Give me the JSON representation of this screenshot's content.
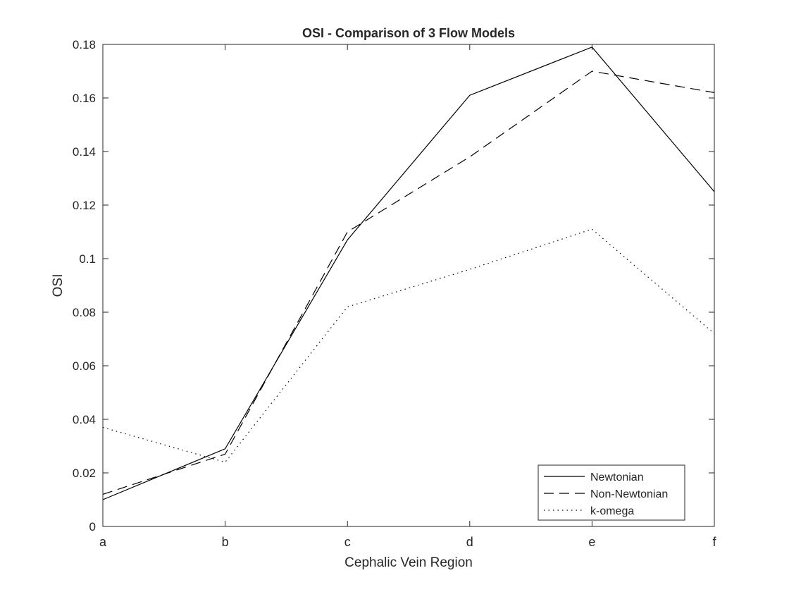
{
  "chart_data": {
    "type": "line",
    "title": "OSI - Comparison of 3 Flow Models",
    "xlabel": "Cephalic Vein Region",
    "ylabel": "OSI",
    "categories": [
      "a",
      "b",
      "c",
      "d",
      "e",
      "f"
    ],
    "ylim": [
      0,
      0.18
    ],
    "yticks": [
      "0",
      "0.02",
      "0.04",
      "0.06",
      "0.08",
      "0.1",
      "0.12",
      "0.14",
      "0.16",
      "0.18"
    ],
    "ytick_values": [
      0,
      0.02,
      0.04,
      0.06,
      0.08,
      0.1,
      0.12,
      0.14,
      0.16,
      0.18
    ],
    "grid": false,
    "legend_position": "bottom-right",
    "series": [
      {
        "name": "Newtonian",
        "style": "solid",
        "values": [
          0.01,
          0.029,
          0.107,
          0.161,
          0.179,
          0.125
        ]
      },
      {
        "name": "Non-Newtonian",
        "style": "dashed",
        "values": [
          0.012,
          0.027,
          0.11,
          0.138,
          0.17,
          0.162
        ]
      },
      {
        "name": "k-omega",
        "style": "dotted",
        "values": [
          0.037,
          0.024,
          0.082,
          0.096,
          0.111,
          0.072
        ]
      }
    ],
    "line_color": "#000000"
  }
}
